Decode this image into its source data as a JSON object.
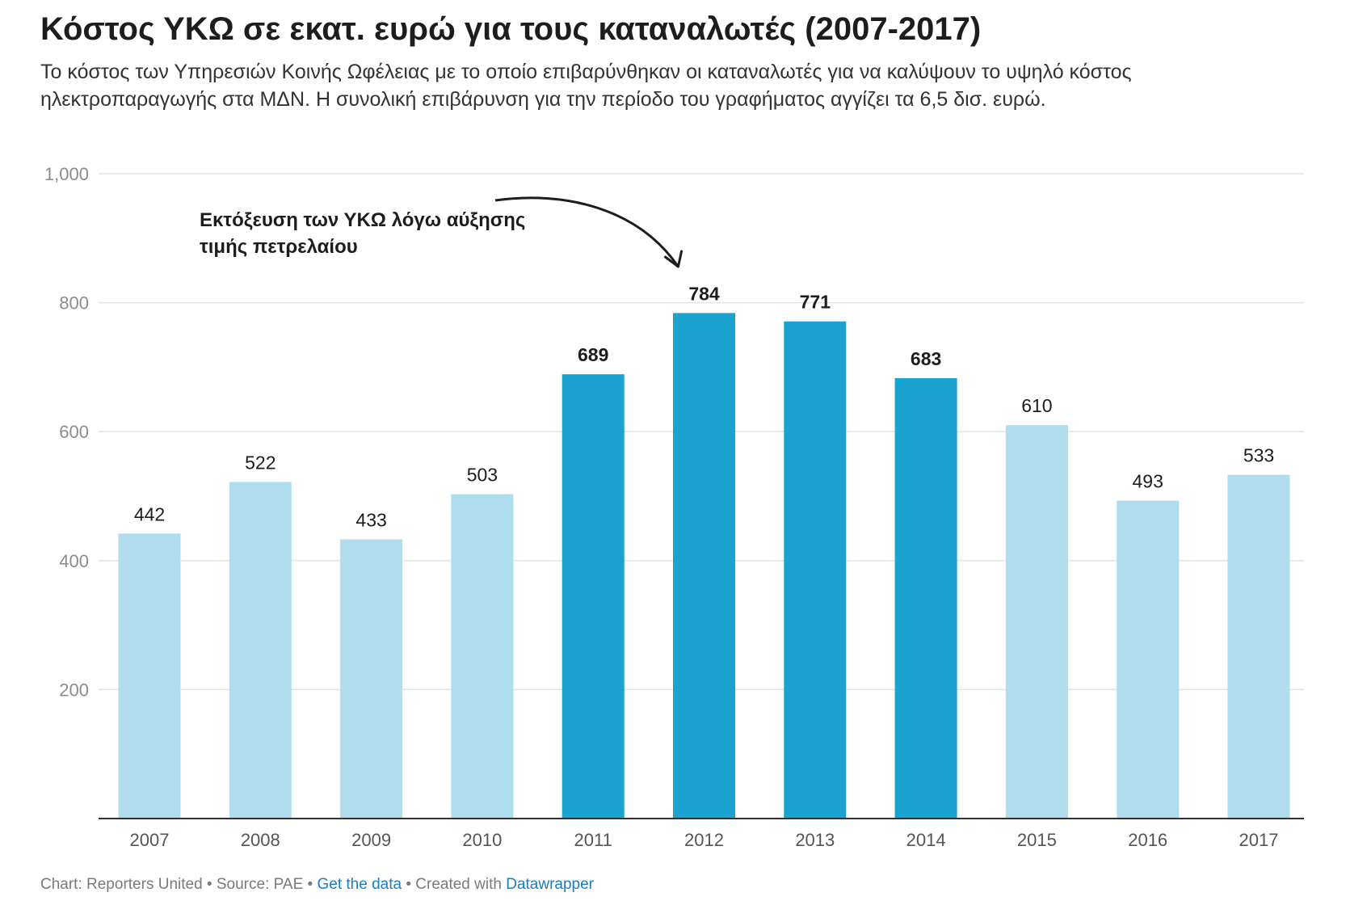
{
  "header": {
    "title": "Κόστος ΥΚΩ σε εκατ. ευρώ για τους καταναλωτές (2007-2017)",
    "description": "Το κόστος των Υπηρεσιών Κοινής Ωφέλειας με το οποίο επιβαρύνθηκαν οι καταναλωτές για να καλύψουν το υψηλό κόστος ηλεκτροπαραγωγής στα ΜΔΝ. Η συνολική επιβάρυνση για την περίοδο του γραφήματος αγγίζει τα 6,5 δισ. ευρώ."
  },
  "chart_data": {
    "type": "bar",
    "categories": [
      "2007",
      "2008",
      "2009",
      "2010",
      "2011",
      "2012",
      "2013",
      "2014",
      "2015",
      "2016",
      "2017"
    ],
    "values": [
      442,
      522,
      433,
      503,
      689,
      784,
      771,
      683,
      610,
      493,
      533
    ],
    "highlighted": [
      false,
      false,
      false,
      false,
      true,
      true,
      true,
      true,
      false,
      false,
      false
    ],
    "ylim": [
      0,
      1000
    ],
    "yticks": [
      200,
      400,
      600,
      800,
      1000
    ],
    "ytick_labels": [
      "200",
      "400",
      "600",
      "800",
      "1,000"
    ],
    "grid": true,
    "colors": {
      "base": "#b0dded",
      "highlight": "#1aa2d0",
      "grid": "#e3e3e3",
      "axis": "#333333",
      "tick_text": "#8c8c8c"
    },
    "annotation": {
      "lines": [
        "Εκτόξευση των ΥΚΩ λόγω αύξησης",
        "τιμής πετρελαίου"
      ],
      "target": "2012"
    }
  },
  "footer": {
    "chart_label": "Chart: Reporters United",
    "source_label": "Source: PAE",
    "get_data_label": "Get the data",
    "created_label": "Created with",
    "datawrapper_label": "Datawrapper",
    "separator": " • "
  }
}
